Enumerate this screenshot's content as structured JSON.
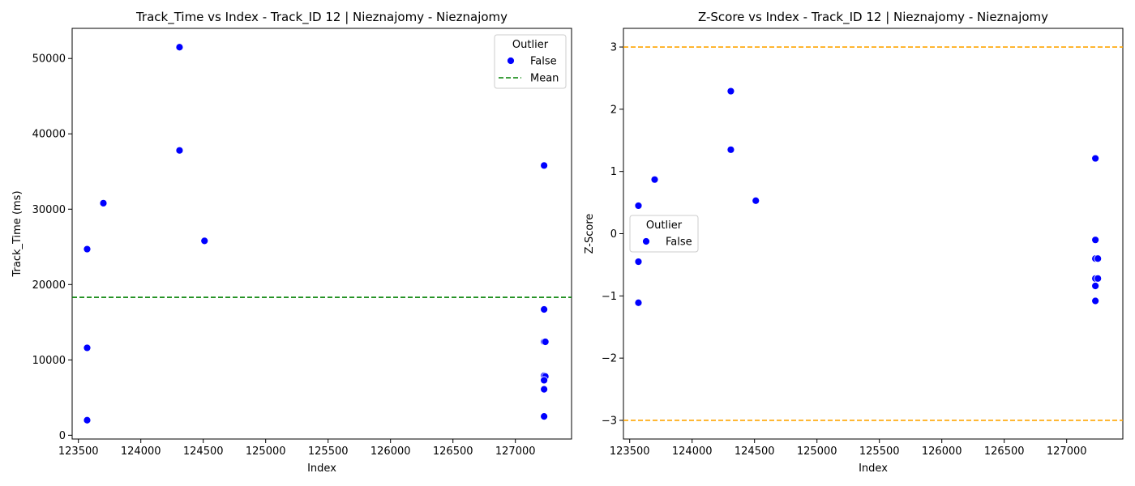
{
  "chart_data": [
    {
      "type": "scatter",
      "title": "Track_Time vs Index - Track_ID 12 | Nieznajomy - Nieznajomy",
      "xlabel": "Index",
      "ylabel": "Track_Time (ms)",
      "xlim": [
        123450,
        127450
      ],
      "ylim": [
        -500,
        54000
      ],
      "xticks": [
        123500,
        124000,
        124500,
        125000,
        125500,
        126000,
        126500,
        127000
      ],
      "yticks": [
        0,
        10000,
        20000,
        30000,
        40000,
        50000
      ],
      "mean_line": {
        "label": "Mean",
        "value": 18300,
        "color": "#008000"
      },
      "series": [
        {
          "name": "False",
          "color": "#0000ff",
          "x": [
            123570,
            123570,
            123570,
            123700,
            124310,
            124310,
            124510,
            127230,
            127230,
            127230,
            127240,
            127230,
            127240,
            127230,
            127230,
            127230
          ],
          "y": [
            24700,
            11600,
            2000,
            30800,
            51500,
            37800,
            25800,
            35800,
            16700,
            12400,
            12400,
            7900,
            7800,
            7300,
            6100,
            2500
          ]
        }
      ],
      "legend": {
        "title": "Outlier",
        "entries": [
          "False",
          "Mean"
        ],
        "position": "top-right"
      }
    },
    {
      "type": "scatter",
      "title": "Z-Score vs Index - Track_ID 12 | Nieznajomy - Nieznajomy",
      "xlabel": "Index",
      "ylabel": "Z-Score",
      "xlim": [
        123450,
        127450
      ],
      "ylim": [
        -3.3,
        3.3
      ],
      "xticks": [
        123500,
        124000,
        124500,
        125000,
        125500,
        126000,
        126500,
        127000
      ],
      "yticks": [
        -3,
        -2,
        -1,
        0,
        1,
        2,
        3
      ],
      "threshold_lines": {
        "values": [
          3,
          -3
        ],
        "color": "#ffa500"
      },
      "series": [
        {
          "name": "False",
          "color": "#0000ff",
          "x": [
            123570,
            123570,
            123570,
            123700,
            124310,
            124310,
            124510,
            127230,
            127230,
            127230,
            127250,
            127230,
            127250,
            127230,
            127230
          ],
          "y": [
            0.45,
            -0.45,
            -1.11,
            0.87,
            2.29,
            1.35,
            0.53,
            1.21,
            -0.1,
            -0.4,
            -0.4,
            -0.72,
            -0.72,
            -0.84,
            -1.08
          ]
        }
      ],
      "legend": {
        "title": "Outlier",
        "entries": [
          "False"
        ],
        "position": "center-left"
      }
    }
  ]
}
